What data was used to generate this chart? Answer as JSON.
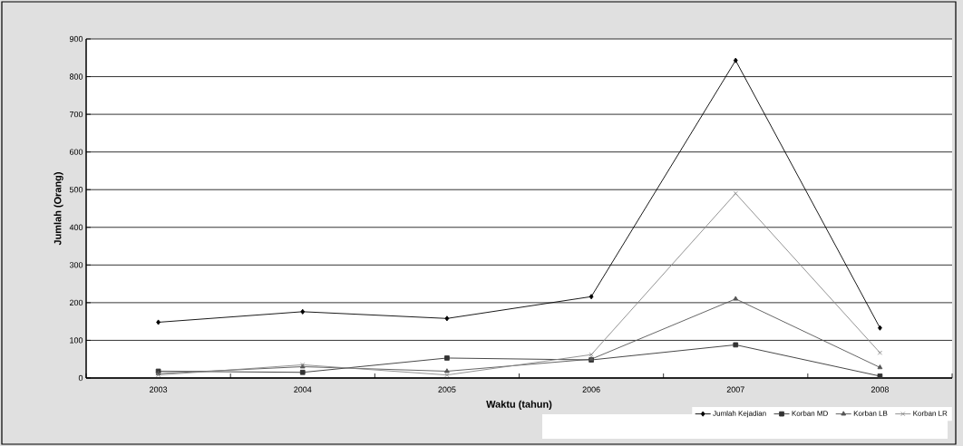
{
  "chart_data": {
    "type": "line",
    "xlabel": "Waktu (tahun)",
    "ylabel": "Jumlah (Orang)",
    "categories": [
      "2003",
      "2004",
      "2005",
      "2006",
      "2007",
      "2008"
    ],
    "series": [
      {
        "name": "Jumlah Kejadian",
        "color": "#000000",
        "marker": "diamond",
        "values": [
          148,
          176,
          158,
          216,
          843,
          133
        ]
      },
      {
        "name": "Korban MD",
        "color": "#333333",
        "marker": "square",
        "values": [
          18,
          15,
          53,
          48,
          88,
          5
        ]
      },
      {
        "name": "Korban LB",
        "color": "#555555",
        "marker": "triangle",
        "values": [
          12,
          30,
          18,
          50,
          210,
          28
        ]
      },
      {
        "name": "Korban LR",
        "color": "#888888",
        "marker": "cross",
        "values": [
          8,
          35,
          8,
          62,
          490,
          67
        ]
      }
    ],
    "ylim": [
      0,
      900
    ],
    "yticks": [
      0,
      100,
      200,
      300,
      400,
      500,
      600,
      700,
      800,
      900
    ],
    "grid": "y",
    "legend": "bottom right"
  }
}
